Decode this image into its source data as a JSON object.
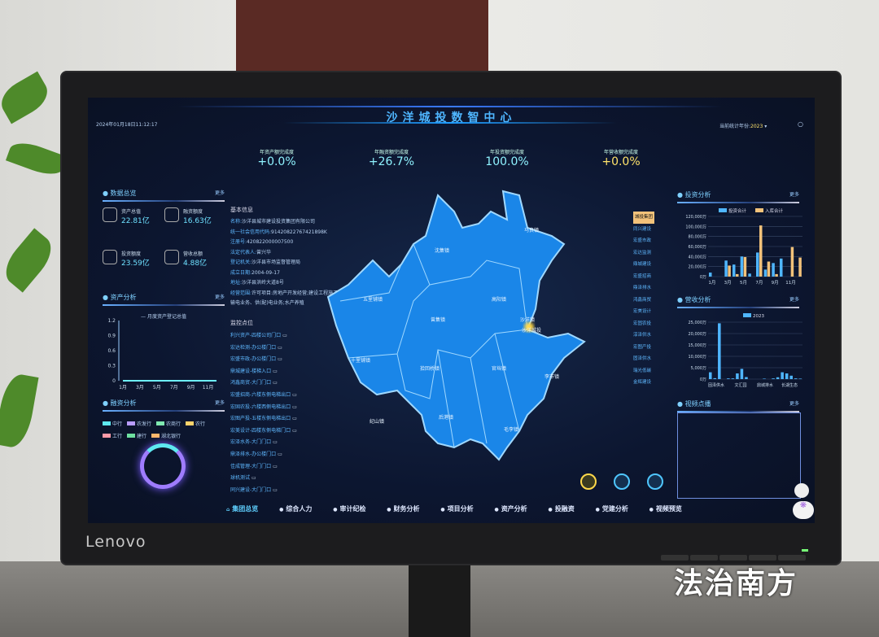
{
  "dashboard": {
    "title": "沙洋城投数智中心",
    "datetime": "2024年01月18日11:12:17",
    "year_label": "当前统计年份:",
    "year_value": "2023",
    "kpis": [
      {
        "label": "年资产额完成度",
        "value": "+0.0%"
      },
      {
        "label": "年融资额完成度",
        "value": "+26.7%"
      },
      {
        "label": "年投资额完成度",
        "value": "100.0%"
      },
      {
        "label": "年营收额完成度",
        "value": "+0.0%",
        "color": "#ffe36b"
      }
    ],
    "more": "更多",
    "overview": {
      "title": "数据总览",
      "items": [
        {
          "label": "资产总值",
          "value": "22.81亿"
        },
        {
          "label": "融资额度",
          "value": "16.63亿"
        },
        {
          "label": "投资额度",
          "value": "23.59亿"
        },
        {
          "label": "营收总额",
          "value": "4.88亿"
        }
      ]
    },
    "asset": {
      "title": "资产分析",
      "legend": "月度资产登记总值",
      "yticks": [
        "1.2",
        "0.9",
        "0.6",
        "0.3",
        "0"
      ],
      "xticks": [
        "1月",
        "3月",
        "5月",
        "7月",
        "9月",
        "11月"
      ],
      "values": [
        0,
        0,
        0,
        0,
        0,
        0,
        0,
        0,
        0,
        0,
        0,
        0
      ]
    },
    "finance": {
      "title": "融资分析",
      "legend": [
        {
          "name": "中行",
          "color": "#5ee8f0"
        },
        {
          "name": "农发行",
          "color": "#b89cff"
        },
        {
          "name": "农商行",
          "color": "#7fe8b0"
        },
        {
          "name": "农行",
          "color": "#ffd36b"
        },
        {
          "name": "工行",
          "color": "#ff9aa8"
        },
        {
          "name": "建行",
          "color": "#6ee0a0"
        },
        {
          "name": "湖北银行",
          "color": "#ffb86b"
        }
      ]
    },
    "basic": {
      "title": "基本信息",
      "rows": [
        {
          "k": "名称:",
          "v": "沙洋县城市建设投资集团有限公司"
        },
        {
          "k": "统一社会信用代码:",
          "v": "91420822767421898K"
        },
        {
          "k": "注册号:",
          "v": "420822000007500"
        },
        {
          "k": "法定代表人:",
          "v": "曾兴华"
        },
        {
          "k": "登记机关:",
          "v": "沙洋县市场监督管理局"
        },
        {
          "k": "成立日期:",
          "v": "2004-09-17"
        },
        {
          "k": "地址:",
          "v": "沙洋县洪岭大道8号"
        },
        {
          "k": "经营范围:",
          "v": "许可项目:房地产开发经营;建设工程施工;"
        },
        {
          "k": "",
          "v": "输电业务、供(配)电业务;水产养殖"
        }
      ]
    },
    "monitor": {
      "title": "监控点位",
      "items": [
        "利兴资产-四楼公司门口",
        "宏达检测-办公楼门口",
        "宏盛市政-办公楼门口",
        "鼎城建设-楼梯入口",
        "鸿鑫商贸-大门门口",
        "宏盛招商-六楼东侧电梯出口",
        "宏固农投-六楼西侧电梯出口",
        "宏图产投-五楼东侧电梯出口",
        "宏美设计-四楼东侧电梯门口",
        "宏泽水务-大门门口",
        "鼎泽排水-办公楼门口",
        "佳成管理-大门门口",
        "球机测试",
        "同兴建设-大门门口"
      ]
    },
    "map": {
      "towns": [
        "沈集镇",
        "马良镇",
        "五里铺镇",
        "高阳镇",
        "曾集镇",
        "沙洋镇",
        "沙洋城投",
        "十里铺镇",
        "拾回桥镇",
        "官垱镇",
        "李市镇",
        "纪山镇",
        "后港镇",
        "毛李镇"
      ]
    },
    "companies": [
      "城投集团",
      "同兴建设",
      "宏盛市政",
      "宏达监测",
      "鼎城建设",
      "宏盛招商",
      "鼎泽排水",
      "鸿鑫商贸",
      "宏美设计",
      "宏固农投",
      "淳泽供水",
      "宏图产投",
      "固泽供水",
      "瑞光低碳",
      "金辉建设"
    ],
    "invest": {
      "title": "投资分析",
      "series": [
        {
          "name": "投资合计",
          "color": "#4fb6ff",
          "values": [
            8000,
            0,
            32000,
            24000,
            40000,
            6000,
            48000,
            14000,
            27000,
            36000,
            0,
            0
          ]
        },
        {
          "name": "入库合计",
          "color": "#f2c27a",
          "values": [
            0,
            0,
            22000,
            5000,
            39000,
            0,
            102000,
            30000,
            5000,
            0,
            59000,
            38000
          ]
        }
      ],
      "yticks": [
        "120,000万",
        "100,000万",
        "80,000万",
        "60,000万",
        "40,000万",
        "20,000万",
        "0万"
      ],
      "ymax": 120000,
      "xticks": [
        "1月",
        "3月",
        "5月",
        "7月",
        "9月",
        "11月"
      ]
    },
    "revenue": {
      "title": "营收分析",
      "legend": "2023",
      "values": [
        3000,
        400,
        24500,
        0,
        300,
        300,
        2500,
        4500,
        900,
        0,
        0,
        0,
        200,
        0,
        300,
        800,
        3000,
        2500,
        1500,
        300,
        200
      ],
      "ymax": 25000,
      "yticks": [
        "25,000万",
        "20,000万",
        "15,000万",
        "10,000万",
        "5,000万",
        "0万"
      ],
      "xticks": [
        "固泽供水",
        "文汇园",
        "鼎城排水",
        "长湖生态"
      ]
    },
    "video": {
      "title": "视频点播"
    },
    "nav": [
      "集团总览",
      "综合人力",
      "审计纪检",
      "财务分析",
      "项目分析",
      "资产分析",
      "投融资",
      "党建分析",
      "视频预览"
    ]
  },
  "monitor_brand": "Lenovo",
  "watermark": "法治南方"
}
